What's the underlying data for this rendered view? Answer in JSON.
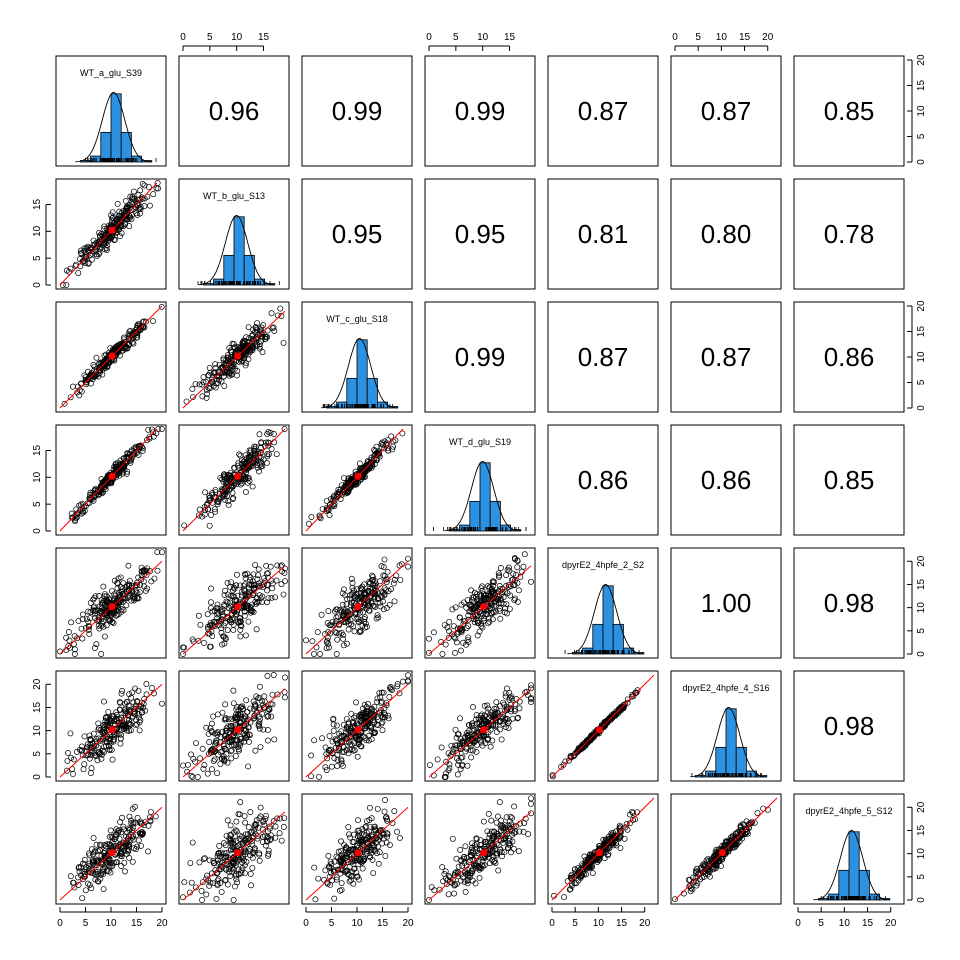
{
  "chart_data": {
    "type": "scatter",
    "layout": "pairs-matrix",
    "variables": [
      "WT_a_glu_S39",
      "WT_b_glu_S13",
      "WT_c_glu_S18",
      "WT_d_glu_S19",
      "dpyrE2_4hpfe_2_S2",
      "dpyrE2_4hpfe_4_S16",
      "dpyrE2_4hpfe_5_S12"
    ],
    "variable_ranges": [
      [
        0,
        20
      ],
      [
        0,
        19
      ],
      [
        0,
        20
      ],
      [
        0,
        19
      ],
      [
        0,
        22
      ],
      [
        0,
        22
      ],
      [
        0,
        22
      ]
    ],
    "correlations": [
      [
        null,
        "0.96",
        "0.99",
        "0.99",
        "0.87",
        "0.87",
        "0.85"
      ],
      [
        null,
        null,
        "0.95",
        "0.95",
        "0.81",
        "0.80",
        "0.78"
      ],
      [
        null,
        null,
        null,
        "0.99",
        "0.87",
        "0.87",
        "0.86"
      ],
      [
        null,
        null,
        null,
        null,
        "0.86",
        "0.86",
        "0.85"
      ],
      [
        null,
        null,
        null,
        null,
        null,
        "1.00",
        "0.98"
      ],
      [
        null,
        null,
        null,
        null,
        null,
        null,
        "0.98"
      ],
      [
        null,
        null,
        null,
        null,
        null,
        null,
        null
      ]
    ],
    "axes": {
      "top": [
        {
          "column": 1,
          "ticks": [
            "0",
            "5",
            "10",
            "15"
          ],
          "values": [
            0,
            5,
            10,
            15
          ]
        },
        {
          "column": 3,
          "ticks": [
            "0",
            "5",
            "10",
            "15"
          ],
          "values": [
            0,
            5,
            10,
            15
          ]
        },
        {
          "column": 5,
          "ticks": [
            "0",
            "5",
            "10",
            "15",
            "20"
          ],
          "values": [
            0,
            5,
            10,
            15,
            20
          ]
        }
      ],
      "bottom": [
        {
          "column": 0,
          "ticks": [
            "0",
            "5",
            "10",
            "15",
            "20"
          ],
          "values": [
            0,
            5,
            10,
            15,
            20
          ]
        },
        {
          "column": 2,
          "ticks": [
            "0",
            "5",
            "10",
            "15",
            "20"
          ],
          "values": [
            0,
            5,
            10,
            15,
            20
          ]
        },
        {
          "column": 4,
          "ticks": [
            "0",
            "5",
            "10",
            "15",
            "20"
          ],
          "values": [
            0,
            5,
            10,
            15,
            20
          ]
        },
        {
          "column": 6,
          "ticks": [
            "0",
            "5",
            "10",
            "15",
            "20"
          ],
          "values": [
            0,
            5,
            10,
            15,
            20
          ]
        }
      ],
      "left": [
        {
          "row": 1,
          "ticks": [
            "0",
            "5",
            "10",
            "15"
          ],
          "values": [
            0,
            5,
            10,
            15
          ]
        },
        {
          "row": 3,
          "ticks": [
            "0",
            "5",
            "10",
            "15"
          ],
          "values": [
            0,
            5,
            10,
            15
          ]
        },
        {
          "row": 5,
          "ticks": [
            "0",
            "5",
            "10",
            "15",
            "20"
          ],
          "values": [
            0,
            5,
            10,
            15,
            20
          ]
        }
      ],
      "right": [
        {
          "row": 0,
          "ticks": [
            "0",
            "5",
            "10",
            "15",
            "20"
          ],
          "values": [
            0,
            5,
            10,
            15,
            20
          ]
        },
        {
          "row": 2,
          "ticks": [
            "0",
            "5",
            "10",
            "15",
            "20"
          ],
          "values": [
            0,
            5,
            10,
            15,
            20
          ]
        },
        {
          "row": 4,
          "ticks": [
            "0",
            "5",
            "10",
            "15",
            "20"
          ],
          "values": [
            0,
            5,
            10,
            15,
            20
          ]
        },
        {
          "row": 6,
          "ticks": [
            "0",
            "5",
            "10",
            "15",
            "20"
          ],
          "values": [
            0,
            5,
            10,
            15,
            20
          ]
        }
      ]
    },
    "histogram": {
      "bin_edges": [
        4,
        6,
        8,
        10,
        12,
        14,
        16,
        18
      ],
      "density": [
        0.01,
        0.04,
        0.2,
        0.46,
        0.2,
        0.04,
        0.01
      ],
      "range": [
        0,
        20
      ]
    },
    "mean_point": [
      10.2,
      10.2
    ],
    "colors": {
      "bar_fill": "#2b91e0",
      "point": "#000000",
      "fit_line": "#ff0000",
      "mean_point": "#ff0000"
    }
  }
}
